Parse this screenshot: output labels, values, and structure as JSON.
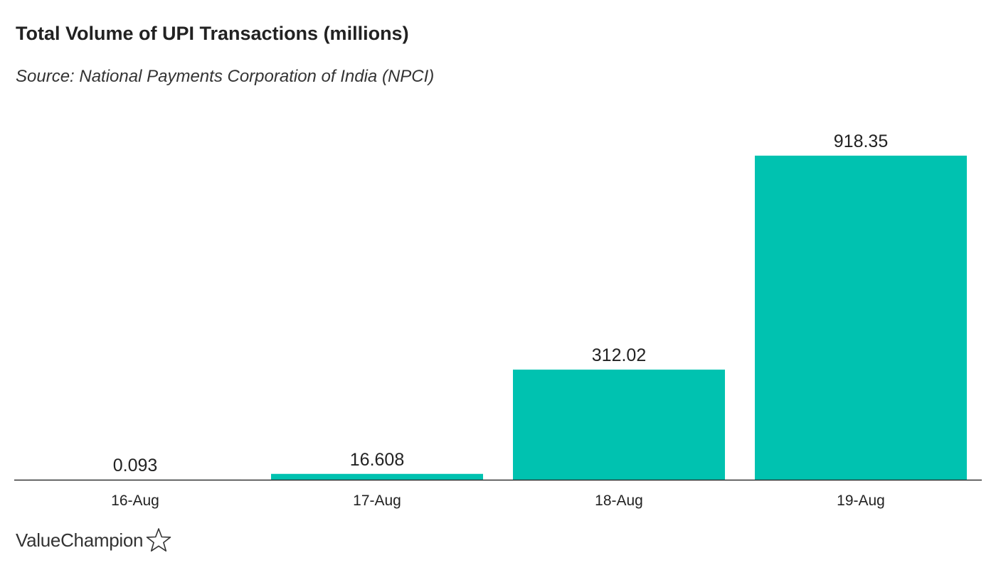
{
  "chart_data": {
    "type": "bar",
    "title": "Total Volume of UPI Transactions (millions)",
    "subtitle": "Source: National Payments Corporation of India (NPCI)",
    "categories": [
      "16-Aug",
      "17-Aug",
      "18-Aug",
      "19-Aug"
    ],
    "values": [
      0.093,
      16.608,
      312.02,
      918.35
    ],
    "value_labels": [
      "0.093",
      "16.608",
      "312.02",
      "918.35"
    ],
    "ylim": [
      0,
      918.35
    ],
    "grid": false,
    "bar_color": "#00c2b0"
  },
  "branding": {
    "logo_text": "ValueChampion",
    "logo_icon": "star-outline-icon"
  }
}
